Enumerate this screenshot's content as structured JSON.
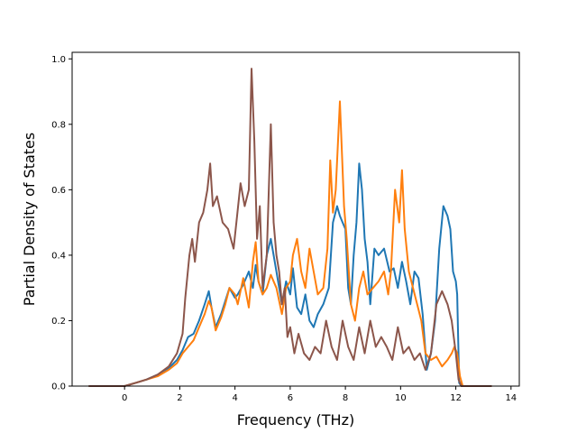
{
  "chart_data": {
    "type": "line",
    "title": "",
    "xlabel": "Frequency (THz)",
    "ylabel": "Partial Density of States",
    "xlim": [
      -1.9,
      14.3
    ],
    "ylim": [
      0.0,
      1.02
    ],
    "xticks": [
      0,
      2,
      4,
      6,
      8,
      10,
      12,
      14
    ],
    "yticks": [
      0.0,
      0.2,
      0.4,
      0.6,
      0.8,
      1.0
    ],
    "xtick_labels": [
      "0",
      "2",
      "4",
      "6",
      "8",
      "10",
      "12",
      "14"
    ],
    "ytick_labels": [
      "0.0",
      "0.2",
      "0.4",
      "0.6",
      "0.8",
      "1.0"
    ],
    "grid": false,
    "legend": "none",
    "series": [
      {
        "color": "#1f77b4",
        "x": [
          -1.3,
          0.0,
          0.4,
          0.8,
          1.2,
          1.6,
          1.9,
          2.1,
          2.3,
          2.5,
          2.7,
          2.9,
          3.05,
          3.15,
          3.3,
          3.5,
          3.65,
          3.8,
          4.0,
          4.1,
          4.3,
          4.5,
          4.65,
          4.75,
          4.85,
          5.0,
          5.15,
          5.3,
          5.5,
          5.7,
          5.85,
          6.0,
          6.1,
          6.25,
          6.4,
          6.55,
          6.7,
          6.85,
          7.0,
          7.2,
          7.4,
          7.55,
          7.7,
          7.8,
          7.9,
          8.0,
          8.1,
          8.2,
          8.3,
          8.4,
          8.5,
          8.6,
          8.7,
          8.8,
          8.9,
          9.05,
          9.2,
          9.4,
          9.6,
          9.75,
          9.9,
          10.05,
          10.2,
          10.35,
          10.5,
          10.65,
          10.8,
          10.95,
          11.1,
          11.25,
          11.4,
          11.55,
          11.7,
          11.8,
          11.9,
          12.0,
          12.05,
          12.12,
          12.2,
          13.3
        ],
        "y": [
          0.0,
          0.0,
          0.01,
          0.02,
          0.035,
          0.055,
          0.08,
          0.11,
          0.15,
          0.16,
          0.2,
          0.25,
          0.29,
          0.24,
          0.18,
          0.22,
          0.26,
          0.3,
          0.27,
          0.28,
          0.31,
          0.35,
          0.3,
          0.37,
          0.32,
          0.28,
          0.4,
          0.45,
          0.35,
          0.25,
          0.32,
          0.28,
          0.36,
          0.24,
          0.22,
          0.28,
          0.2,
          0.18,
          0.22,
          0.25,
          0.3,
          0.5,
          0.55,
          0.52,
          0.5,
          0.48,
          0.3,
          0.25,
          0.4,
          0.5,
          0.68,
          0.6,
          0.45,
          0.38,
          0.25,
          0.42,
          0.4,
          0.42,
          0.35,
          0.36,
          0.3,
          0.38,
          0.32,
          0.25,
          0.35,
          0.33,
          0.22,
          0.05,
          0.1,
          0.2,
          0.42,
          0.55,
          0.52,
          0.48,
          0.35,
          0.32,
          0.28,
          0.01,
          0.0,
          0.0
        ]
      },
      {
        "color": "#ff7f0e",
        "x": [
          -1.3,
          0.0,
          0.4,
          0.8,
          1.2,
          1.6,
          1.9,
          2.1,
          2.3,
          2.5,
          2.7,
          2.9,
          3.05,
          3.15,
          3.3,
          3.5,
          3.65,
          3.8,
          4.0,
          4.1,
          4.3,
          4.5,
          4.65,
          4.75,
          4.85,
          5.0,
          5.15,
          5.3,
          5.5,
          5.7,
          5.85,
          6.0,
          6.1,
          6.25,
          6.4,
          6.55,
          6.7,
          6.85,
          7.0,
          7.2,
          7.35,
          7.45,
          7.55,
          7.65,
          7.8,
          7.95,
          8.05,
          8.2,
          8.35,
          8.5,
          8.65,
          8.8,
          9.0,
          9.2,
          9.4,
          9.55,
          9.65,
          9.8,
          9.95,
          10.05,
          10.15,
          10.3,
          10.45,
          10.6,
          10.75,
          10.9,
          11.1,
          11.3,
          11.5,
          11.7,
          11.85,
          11.95,
          12.05,
          12.15,
          12.25,
          13.3
        ],
        "y": [
          0.0,
          0.0,
          0.01,
          0.02,
          0.03,
          0.05,
          0.07,
          0.1,
          0.12,
          0.14,
          0.18,
          0.22,
          0.26,
          0.24,
          0.17,
          0.21,
          0.25,
          0.3,
          0.28,
          0.25,
          0.33,
          0.24,
          0.38,
          0.44,
          0.32,
          0.28,
          0.3,
          0.34,
          0.3,
          0.22,
          0.3,
          0.32,
          0.4,
          0.45,
          0.35,
          0.3,
          0.42,
          0.35,
          0.28,
          0.3,
          0.42,
          0.69,
          0.53,
          0.6,
          0.87,
          0.55,
          0.45,
          0.25,
          0.2,
          0.3,
          0.35,
          0.28,
          0.3,
          0.32,
          0.35,
          0.28,
          0.35,
          0.6,
          0.5,
          0.66,
          0.48,
          0.35,
          0.3,
          0.25,
          0.2,
          0.1,
          0.08,
          0.09,
          0.06,
          0.08,
          0.1,
          0.12,
          0.1,
          0.03,
          0.0,
          0.0
        ]
      },
      {
        "color": "#8c564b",
        "x": [
          -1.3,
          0.0,
          0.4,
          0.8,
          1.2,
          1.6,
          1.9,
          2.1,
          2.2,
          2.35,
          2.45,
          2.55,
          2.7,
          2.85,
          3.0,
          3.1,
          3.2,
          3.35,
          3.55,
          3.75,
          3.95,
          4.05,
          4.2,
          4.35,
          4.5,
          4.6,
          4.7,
          4.8,
          4.9,
          5.0,
          5.15,
          5.3,
          5.4,
          5.5,
          5.6,
          5.7,
          5.8,
          5.9,
          6.0,
          6.15,
          6.3,
          6.5,
          6.7,
          6.9,
          7.1,
          7.3,
          7.5,
          7.7,
          7.9,
          8.1,
          8.3,
          8.5,
          8.7,
          8.9,
          9.1,
          9.3,
          9.5,
          9.7,
          9.9,
          10.1,
          10.3,
          10.5,
          10.7,
          10.9,
          11.1,
          11.3,
          11.5,
          11.7,
          11.85,
          12.0,
          12.1,
          12.2,
          13.3
        ],
        "y": [
          0.0,
          0.0,
          0.01,
          0.02,
          0.035,
          0.06,
          0.1,
          0.16,
          0.27,
          0.4,
          0.45,
          0.38,
          0.5,
          0.53,
          0.6,
          0.68,
          0.55,
          0.58,
          0.5,
          0.48,
          0.42,
          0.5,
          0.62,
          0.55,
          0.6,
          0.97,
          0.75,
          0.45,
          0.55,
          0.3,
          0.4,
          0.8,
          0.5,
          0.4,
          0.35,
          0.25,
          0.3,
          0.15,
          0.18,
          0.1,
          0.16,
          0.1,
          0.08,
          0.12,
          0.1,
          0.2,
          0.12,
          0.08,
          0.2,
          0.12,
          0.08,
          0.18,
          0.1,
          0.2,
          0.12,
          0.15,
          0.12,
          0.08,
          0.18,
          0.1,
          0.12,
          0.08,
          0.1,
          0.05,
          0.1,
          0.25,
          0.29,
          0.25,
          0.2,
          0.1,
          0.02,
          0.0,
          0.0
        ]
      }
    ]
  }
}
